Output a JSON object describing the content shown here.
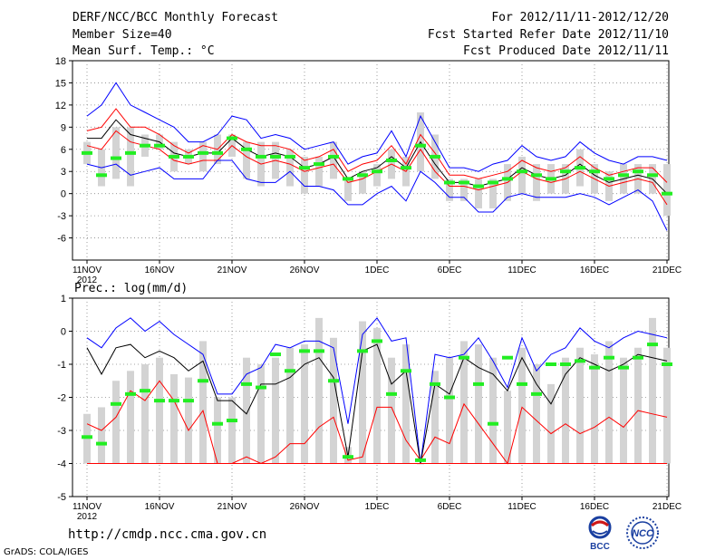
{
  "header": {
    "title": "DERF/NCC/BCC Monthly Forecast",
    "member_size": "Member Size=40",
    "variable": "Mean Surf. Temp.: °C",
    "period": "For 2012/11/11-2012/12/20",
    "started": "Fcst Started Refer Date 2012/11/10",
    "produced": "Fcst Produced Date 2012/11/11"
  },
  "footer": {
    "url": "http://cmdp.ncc.cma.gov.cn",
    "grads": "GrADS: COLA/IGES",
    "logo_bcc": "BCC",
    "logo_ncc": "NCC"
  },
  "colors": {
    "max": "#0000ff",
    "mean": "#000000",
    "spread": "#ff0000",
    "ens": "#22ee22",
    "bar": "#d3d3d3",
    "grid": "#888888"
  },
  "chart_data": [
    {
      "type": "line",
      "title": "Mean Surf. Temp.: °C",
      "x_ticks": [
        "11NOV",
        "16NOV",
        "21NOV",
        "26NOV",
        "1DEC",
        "6DEC",
        "11DEC",
        "16DEC",
        "21DEC"
      ],
      "x_year": "2012",
      "ylim": [
        -9,
        18
      ],
      "y_ticks": [
        18,
        15,
        12,
        9,
        6,
        3,
        0,
        -3,
        -6
      ],
      "series": [
        {
          "name": "max",
          "values": [
            10.5,
            12,
            15,
            12,
            11,
            10,
            9,
            7,
            7,
            8,
            10.5,
            10,
            7.5,
            8,
            7.5,
            6,
            6.5,
            7,
            4,
            5,
            5.5,
            8.5,
            5,
            10.5,
            7,
            3.5,
            3.5,
            3,
            4,
            4.5,
            6.5,
            5,
            4.5,
            5,
            7,
            5.5,
            4.5,
            4,
            5,
            5,
            4.5
          ]
        },
        {
          "name": "upper",
          "values": [
            8.5,
            9,
            11.5,
            9,
            9,
            8,
            6.5,
            5.5,
            6.5,
            6,
            8,
            7,
            6.5,
            6.5,
            6,
            4.5,
            5,
            6,
            3,
            4,
            4.5,
            6.5,
            4,
            8,
            5.5,
            2.5,
            2.5,
            2,
            2.5,
            3,
            4.5,
            3.5,
            3,
            3.5,
            5,
            3.5,
            2.5,
            3,
            3.5,
            3.5,
            1.5
          ]
        },
        {
          "name": "mean",
          "values": [
            7.5,
            7.5,
            10,
            8,
            7.5,
            7,
            5.5,
            5,
            5.5,
            5.5,
            7.5,
            6,
            5,
            5.5,
            5,
            3.5,
            4,
            5,
            2,
            3,
            3.5,
            5,
            3.5,
            7,
            4,
            1.5,
            1.5,
            1,
            1.5,
            2,
            3.5,
            2.5,
            2,
            2.5,
            4,
            2.5,
            1.5,
            2,
            2.5,
            2,
            0
          ]
        },
        {
          "name": "lower",
          "values": [
            6.5,
            6,
            8.5,
            7,
            6.5,
            6,
            4.5,
            4,
            4.5,
            4.5,
            6.5,
            5,
            4,
            4.5,
            4,
            3,
            3.5,
            4,
            1.5,
            2,
            3,
            4,
            3,
            6,
            3,
            1,
            1,
            0.5,
            1,
            1.5,
            3,
            2,
            1.5,
            2,
            3,
            2,
            1,
            1.5,
            2,
            1.5,
            -1.5
          ]
        },
        {
          "name": "min",
          "values": [
            4,
            3.5,
            4,
            2.5,
            3,
            3.5,
            2,
            2,
            2,
            4.5,
            4.5,
            2,
            1.5,
            1.5,
            3,
            1,
            1,
            0.5,
            -1.5,
            -1.5,
            0,
            1,
            -1,
            3,
            1.5,
            -0.5,
            -0.5,
            -2.5,
            -2.5,
            -0.5,
            0,
            -0.5,
            -0.5,
            -0.5,
            0,
            -0.5,
            -1.5,
            -0.5,
            0.5,
            -1,
            -5
          ]
        },
        {
          "name": "ensemble_bar_top",
          "values": [
            7,
            6,
            9,
            9,
            8,
            8,
            7,
            6,
            7,
            8,
            8,
            7,
            7,
            7,
            6,
            5,
            5,
            7,
            2,
            3,
            4,
            6,
            5,
            11,
            8,
            2,
            2,
            2,
            2,
            4,
            5,
            4,
            4,
            4,
            6,
            4,
            3,
            4,
            4,
            4,
            4
          ]
        },
        {
          "name": "ensemble_bar_bottom",
          "values": [
            4,
            1,
            2,
            1,
            5,
            6,
            3,
            4,
            3,
            4,
            5,
            2,
            1,
            2,
            1,
            0,
            1,
            2,
            -1,
            0,
            1,
            2,
            1,
            3,
            2,
            -1,
            -1,
            -2,
            -2,
            -1,
            0,
            -1,
            0,
            0,
            1,
            0,
            -1,
            0,
            0,
            0,
            -3
          ]
        },
        {
          "name": "ensemble_mark",
          "values": [
            5.5,
            2.5,
            4.8,
            5.5,
            6.5,
            6.5,
            5,
            5,
            5.5,
            5.5,
            7.5,
            6,
            5,
            5,
            5,
            3.5,
            4,
            5,
            2,
            2.5,
            3,
            4.5,
            3.5,
            6.5,
            5,
            1.5,
            1.5,
            1,
            1.5,
            2,
            3,
            2.5,
            2,
            3,
            3.5,
            3,
            2,
            2.5,
            3,
            2.5,
            0
          ]
        }
      ]
    },
    {
      "type": "line",
      "title": "Prec.: log(mm/d)",
      "x_ticks": [
        "11NOV",
        "16NOV",
        "21NOV",
        "26NOV",
        "1DEC",
        "6DEC",
        "11DEC",
        "16DEC",
        "21DEC"
      ],
      "x_year": "2012",
      "ylim": [
        -5,
        1
      ],
      "y_ticks": [
        1,
        0,
        -1,
        -2,
        -3,
        -4,
        -5
      ],
      "series": [
        {
          "name": "max",
          "values": [
            -0.2,
            -0.5,
            0.1,
            0.4,
            0,
            0.3,
            -0.1,
            -0.4,
            -0.7,
            -1.9,
            -1.9,
            -1.3,
            -1.1,
            -0.4,
            -0.5,
            -0.3,
            -0.3,
            -0.5,
            -2.8,
            -0.1,
            0.4,
            -0.3,
            -0.2,
            -4,
            -0.7,
            -0.8,
            -0.7,
            -0.2,
            -0.9,
            -1.7,
            -0.2,
            -1.2,
            -0.7,
            -0.5,
            0.1,
            -0.3,
            -0.5,
            -0.2,
            0,
            -0.1,
            -0.2
          ]
        },
        {
          "name": "mean",
          "values": [
            -0.5,
            -1.3,
            -0.5,
            -0.4,
            -0.8,
            -0.6,
            -0.8,
            -1.2,
            -0.9,
            -2.1,
            -2.1,
            -2.5,
            -1.6,
            -1.6,
            -1.4,
            -1,
            -0.8,
            -1.4,
            -3.8,
            -0.6,
            -0.4,
            -1.6,
            -1.2,
            -4,
            -1.6,
            -1.9,
            -0.8,
            -1.1,
            -1.3,
            -1.8,
            -0.8,
            -1.6,
            -2.2,
            -1.3,
            -0.8,
            -1,
            -1.2,
            -1,
            -0.7,
            -0.8,
            -0.9
          ]
        },
        {
          "name": "min",
          "values": [
            -2.8,
            -3,
            -2.6,
            -1.8,
            -2.1,
            -1.5,
            -2.1,
            -3,
            -2.4,
            -4,
            -4,
            -3.8,
            -4,
            -3.8,
            -3.4,
            -3.4,
            -2.9,
            -2.6,
            -3.9,
            -3.8,
            -2.3,
            -2.3,
            -3.3,
            -3.9,
            -3.2,
            -3.4,
            -2.2,
            -2.8,
            -3.4,
            -4,
            -2.3,
            -2.7,
            -3.1,
            -2.8,
            -3.1,
            -2.9,
            -2.6,
            -2.9,
            -2.4,
            -2.5,
            -2.6
          ]
        },
        {
          "name": "ensemble_bar_top",
          "values": [
            -2.5,
            -2.3,
            -1.5,
            -1.2,
            -1,
            -0.8,
            -1.3,
            -1.4,
            -0.3,
            -2,
            -2,
            -0.8,
            -1,
            -0.8,
            -0.5,
            -0.4,
            0.4,
            -0.2,
            -3.5,
            0.3,
            0.1,
            -0.8,
            -0.4,
            -4,
            -1.2,
            -0.8,
            -0.3,
            -0.4,
            -0.8,
            -1.8,
            -0.5,
            -1,
            -1.6,
            -0.8,
            -0.5,
            -0.7,
            -0.3,
            -0.8,
            -0.5,
            0.4,
            -0.5
          ]
        },
        {
          "name": "ensemble_mark",
          "values": [
            -3.2,
            -3.4,
            -2.2,
            -1.9,
            -1.8,
            -2.1,
            -2.1,
            -2.1,
            -1.5,
            -2.8,
            -2.7,
            -1.6,
            -1.7,
            -0.7,
            -1.2,
            -0.6,
            -0.6,
            -1.5,
            -3.8,
            -0.6,
            -0.3,
            -1.9,
            -1.2,
            -3.9,
            -1.6,
            -2,
            -0.8,
            -1.6,
            -2.8,
            -0.8,
            -1.6,
            -1.9,
            -1,
            -1,
            -0.9,
            -1.1,
            -0.8,
            -1.1,
            -0.8,
            -0.4,
            -1
          ]
        }
      ]
    }
  ]
}
